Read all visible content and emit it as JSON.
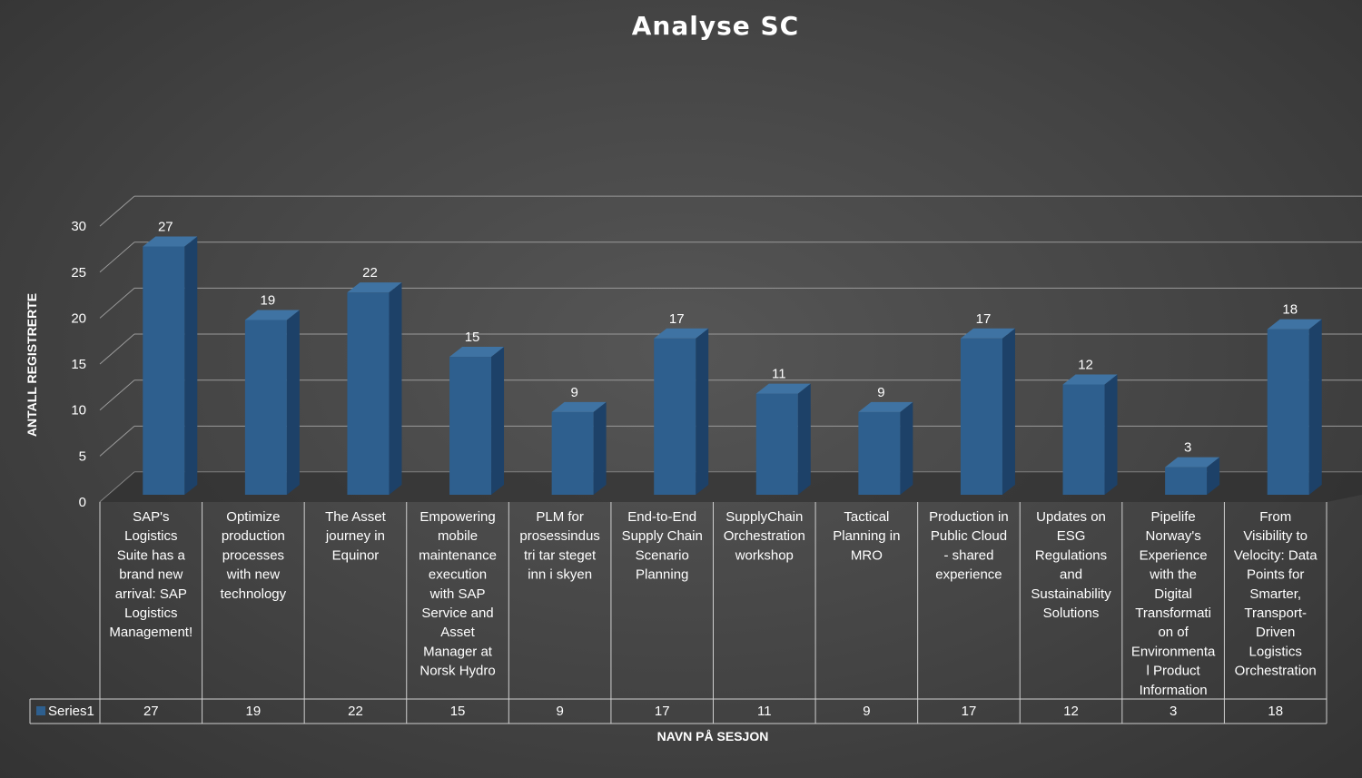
{
  "chart_data": {
    "type": "bar",
    "style": "3d-column-with-data-table",
    "title": "Analyse SC",
    "xlabel": "NAVN PÅ SESJON",
    "ylabel": "ANTALL REGISTRERTE",
    "ylim": [
      0,
      30
    ],
    "yticks": [
      "0",
      "5",
      "10",
      "15",
      "20",
      "25",
      "30"
    ],
    "grid": true,
    "bar_color": "#2e5f8e",
    "categories": [
      "SAP's Logistics Suite has a brand new arrival: SAP Logistics Management!",
      "Optimize production processes with new technology",
      "The Asset journey in Equinor",
      "Empowering mobile maintenance execution with SAP Service and Asset Manager at Norsk Hydro",
      "PLM for prosessindustri tar steget inn i skyen",
      "End-to-End Supply Chain Scenario Planning",
      "SupplyChain Orchestration workshop",
      "Tactical Planning in MRO",
      "Production in Public Cloud - shared experience",
      "Updates on ESG Regulations and Sustainability Solutions",
      "Pipelife Norway's Experience with the Digital Transformation of Environmental Product Information",
      "From Visibility to Velocity: Data Points for Smarter, Transport-Driven Logistics Orchestration"
    ],
    "category_lines": [
      [
        "SAP's",
        "Logistics",
        "Suite has a",
        "brand new",
        "arrival: SAP",
        "Logistics",
        "Management!"
      ],
      [
        "Optimize",
        "production",
        "processes",
        "with new",
        "technology"
      ],
      [
        "The Asset",
        "journey in",
        "Equinor"
      ],
      [
        "Empowering",
        "mobile",
        "maintenance",
        "execution",
        "with SAP",
        "Service and",
        "Asset",
        "Manager at",
        "Norsk Hydro"
      ],
      [
        "PLM for",
        "prosessindus",
        "tri tar steget",
        "inn i skyen"
      ],
      [
        "End-to-End",
        "Supply Chain",
        "Scenario",
        "Planning"
      ],
      [
        "SupplyChain",
        "Orchestration",
        "workshop"
      ],
      [
        "Tactical",
        "Planning in",
        "MRO"
      ],
      [
        "Production in",
        "Public Cloud",
        "- shared",
        "experience"
      ],
      [
        "Updates on",
        "ESG",
        "Regulations",
        "and",
        "Sustainability",
        "Solutions"
      ],
      [
        "Pipelife",
        "Norway's",
        "Experience",
        "with the",
        "Digital",
        "Transformati",
        "on of",
        "Environmenta",
        "l Product",
        "Information"
      ],
      [
        "From",
        "Visibility to",
        "Velocity: Data",
        "Points for",
        "Smarter,",
        "Transport-",
        "Driven",
        "Logistics",
        "Orchestration"
      ]
    ],
    "series": [
      {
        "name": "Series1",
        "values": [
          27,
          19,
          22,
          15,
          9,
          17,
          11,
          9,
          17,
          12,
          3,
          18
        ]
      }
    ]
  }
}
